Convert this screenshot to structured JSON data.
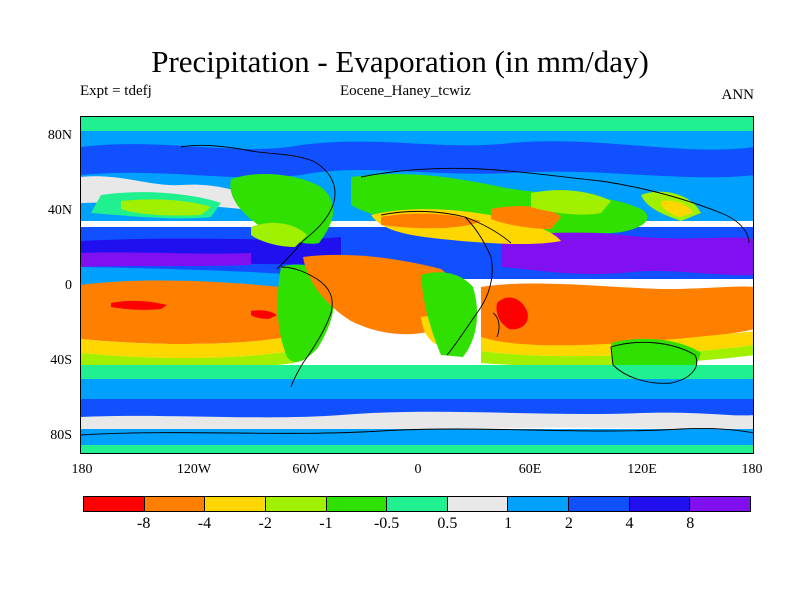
{
  "title": "Precipitation - Evaporation (in mm/day)",
  "subtitle_left": "Expt = tdefj",
  "subtitle_center": "Eocene_Haney_tcwiz",
  "subtitle_right": "ANN",
  "y_ticks": [
    "80N",
    "40N",
    "0",
    "40S",
    "80S"
  ],
  "x_ticks": [
    "180",
    "120W",
    "60W",
    "0",
    "60E",
    "120E",
    "180"
  ],
  "colorbar": {
    "colors": [
      "#ff0000",
      "#ff8000",
      "#ffd700",
      "#a0f000",
      "#30e000",
      "#20f090",
      "#e8e8e8",
      "#00a0ff",
      "#1050ff",
      "#2010f0",
      "#8010f0"
    ],
    "labels": [
      "-8",
      "-4",
      "-2",
      "-1",
      "-0.5",
      "0.5",
      "1",
      "2",
      "4",
      "8"
    ]
  }
}
